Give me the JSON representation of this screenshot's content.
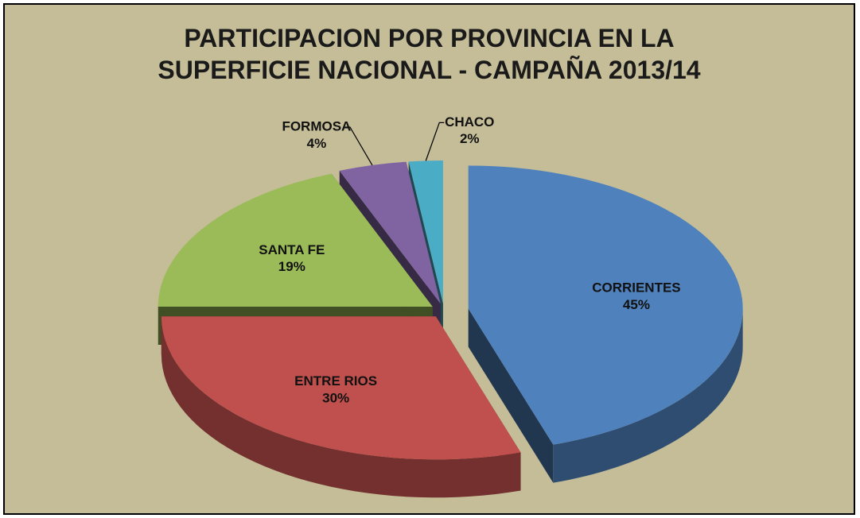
{
  "chart_data": {
    "type": "pie",
    "title": "PARTICIPACION POR PROVINCIA EN LA SUPERFICIE NACIONAL - CAMPAÑA 2013/14",
    "categories": [
      "CORRIENTES",
      "ENTRE RIOS",
      "SANTA FE",
      "FORMOSA",
      "CHACO"
    ],
    "values": [
      45,
      30,
      19,
      4,
      2
    ],
    "value_labels": [
      "45%",
      "30%",
      "19%",
      "4%",
      "2%"
    ],
    "colors": [
      "#4f81bd",
      "#c0504d",
      "#9bbb59",
      "#8064a2",
      "#4bacc6"
    ]
  }
}
